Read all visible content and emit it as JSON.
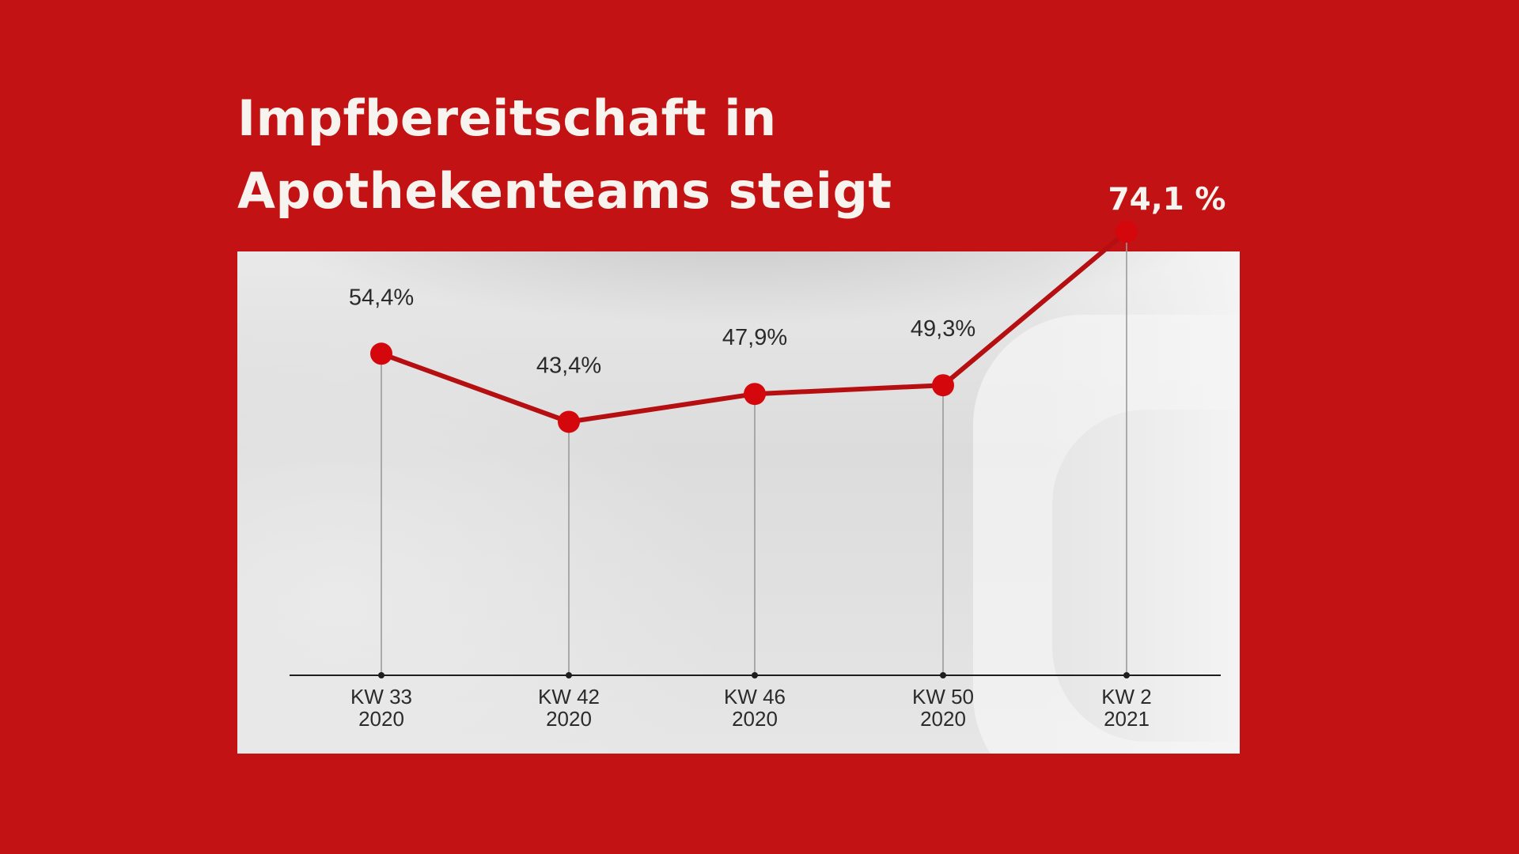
{
  "chart_data": {
    "type": "line",
    "title": "Impfbereitschaft in Apothekenteams steigt",
    "title_lines": [
      "Impfbereitschaft in",
      "Apothekenteams steigt"
    ],
    "categories": [
      [
        "KW 33",
        "2020"
      ],
      [
        "KW 42",
        "2020"
      ],
      [
        "KW 46",
        "2020"
      ],
      [
        "KW 50",
        "2020"
      ],
      [
        "KW 2",
        "2021"
      ]
    ],
    "values": [
      54.4,
      43.4,
      47.9,
      49.3,
      74.1
    ],
    "value_labels": [
      "54,4%",
      "43,4%",
      "47,9%",
      "49,3%",
      "74,1 %"
    ],
    "unit": "%",
    "ylim": [
      0,
      80
    ],
    "grid": false,
    "colors": {
      "background": "#c21214",
      "line": "#b50f12",
      "marker": "#d4070d",
      "text_on_red": "#f7f4ef",
      "text_on_panel": "#2b2b2b",
      "axis": "#1e1e1e",
      "drop_line": "#9a9a9a"
    }
  }
}
